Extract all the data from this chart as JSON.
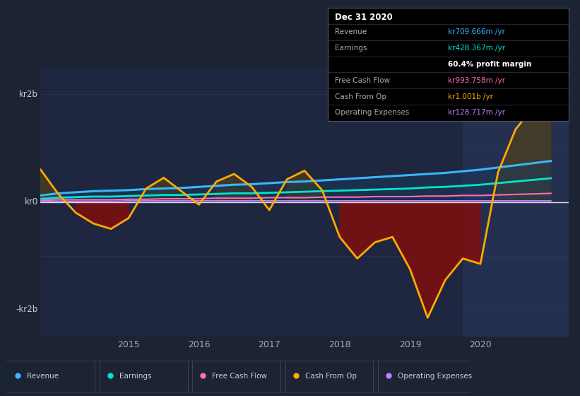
{
  "bg_color": "#1c2333",
  "plot_bg_color": "#1e2640",
  "highlight_bg_color": "#252f50",
  "ylim": [
    -2.5,
    2.5
  ],
  "xlim_start": 2013.75,
  "xlim_end": 2021.25,
  "x_ticks": [
    2015,
    2016,
    2017,
    2018,
    2019,
    2020
  ],
  "colors": {
    "revenue": "#38b6ff",
    "earnings": "#00e5cc",
    "free_cash_flow": "#ff6eb4",
    "cash_from_op": "#ffaa00",
    "operating_expenses": "#bf7fff"
  },
  "legend_labels": [
    "Revenue",
    "Earnings",
    "Free Cash Flow",
    "Cash From Op",
    "Operating Expenses"
  ],
  "legend_colors": [
    "#38b6ff",
    "#00e5cc",
    "#ff6eb4",
    "#ffaa00",
    "#bf7fff"
  ],
  "info_box": {
    "date": "Dec 31 2020",
    "rows": [
      {
        "label": "Revenue",
        "value": "kr709.666m /yr",
        "color": "#38b6ff"
      },
      {
        "label": "Earnings",
        "value": "kr428.367m /yr",
        "color": "#00e5cc"
      },
      {
        "label": "",
        "value": "60.4% profit margin",
        "color": "#ffffff"
      },
      {
        "label": "Free Cash Flow",
        "value": "kr993.758m /yr",
        "color": "#ff6eb4"
      },
      {
        "label": "Cash From Op",
        "value": "kr1.001b /yr",
        "color": "#ffaa00"
      },
      {
        "label": "Operating Expenses",
        "value": "kr128.717m /yr",
        "color": "#bf7fff"
      }
    ]
  },
  "t": [
    2013.75,
    2014.0,
    2014.25,
    2014.5,
    2014.75,
    2015.0,
    2015.25,
    2015.5,
    2015.75,
    2016.0,
    2016.25,
    2016.5,
    2016.75,
    2017.0,
    2017.25,
    2017.5,
    2017.75,
    2018.0,
    2018.25,
    2018.5,
    2018.75,
    2019.0,
    2019.25,
    2019.5,
    2019.75,
    2020.0,
    2020.25,
    2020.5,
    2020.75,
    2021.0
  ],
  "revenue": [
    0.12,
    0.16,
    0.18,
    0.2,
    0.21,
    0.22,
    0.24,
    0.25,
    0.26,
    0.28,
    0.3,
    0.32,
    0.33,
    0.35,
    0.37,
    0.38,
    0.4,
    0.42,
    0.44,
    0.46,
    0.48,
    0.5,
    0.52,
    0.54,
    0.57,
    0.6,
    0.64,
    0.68,
    0.72,
    0.76
  ],
  "earnings": [
    0.06,
    0.08,
    0.09,
    0.1,
    0.1,
    0.11,
    0.12,
    0.13,
    0.13,
    0.14,
    0.15,
    0.16,
    0.16,
    0.17,
    0.18,
    0.19,
    0.2,
    0.21,
    0.22,
    0.23,
    0.24,
    0.25,
    0.27,
    0.28,
    0.3,
    0.32,
    0.35,
    0.38,
    0.41,
    0.44
  ],
  "fcf": [
    0.03,
    0.04,
    0.04,
    0.04,
    0.04,
    0.05,
    0.05,
    0.06,
    0.06,
    0.06,
    0.07,
    0.07,
    0.07,
    0.08,
    0.08,
    0.08,
    0.09,
    0.09,
    0.09,
    0.1,
    0.1,
    0.1,
    0.11,
    0.11,
    0.12,
    0.12,
    0.13,
    0.14,
    0.15,
    0.16
  ],
  "opex": [
    0.01,
    0.01,
    0.01,
    0.01,
    0.01,
    0.02,
    0.02,
    0.02,
    0.02,
    0.02,
    0.02,
    0.02,
    0.02,
    0.02,
    0.02,
    0.02,
    0.02,
    0.02,
    0.02,
    0.02,
    0.02,
    0.02,
    0.02,
    0.02,
    0.02,
    0.02,
    0.02,
    0.02,
    0.02,
    0.02
  ],
  "cashop": [
    0.6,
    0.15,
    -0.2,
    -0.4,
    -0.5,
    -0.3,
    0.25,
    0.45,
    0.2,
    -0.05,
    0.38,
    0.52,
    0.28,
    -0.15,
    0.42,
    0.58,
    0.22,
    -0.65,
    -1.05,
    -0.75,
    -0.65,
    -1.25,
    -2.15,
    -1.45,
    -1.05,
    -1.15,
    0.55,
    1.35,
    1.75,
    2.05
  ]
}
